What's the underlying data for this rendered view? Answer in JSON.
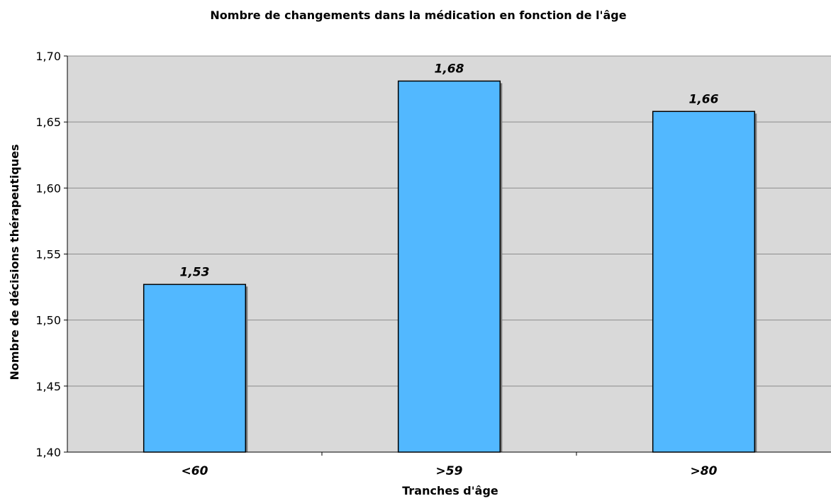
{
  "chart_data": {
    "type": "bar",
    "title": "Nombre de changements dans la médication en fonction de l'âge",
    "xlabel": "Tranches d'âge",
    "ylabel": "Nombre de décisions thérapeutiques",
    "categories": [
      "<60",
      ">59",
      ">80"
    ],
    "values": [
      1.527,
      1.681,
      1.658
    ],
    "value_labels": [
      "1,53",
      "1,68",
      "1,66"
    ],
    "ylim": [
      1.4,
      1.7
    ],
    "yticks": [
      1.4,
      1.45,
      1.5,
      1.55,
      1.6,
      1.65,
      1.7
    ],
    "ytick_labels": [
      "1,40",
      "1,45",
      "1,50",
      "1,55",
      "1,60",
      "1,65",
      "1,70"
    ],
    "grid": true,
    "legend": "none",
    "colors": {
      "bar_fill": "#52b8ff",
      "bar_stroke": "#000000",
      "plot_background": "#d9d9d9",
      "gridline": "#8c8c8c",
      "bar_shadow": "#7a7a7a"
    }
  }
}
